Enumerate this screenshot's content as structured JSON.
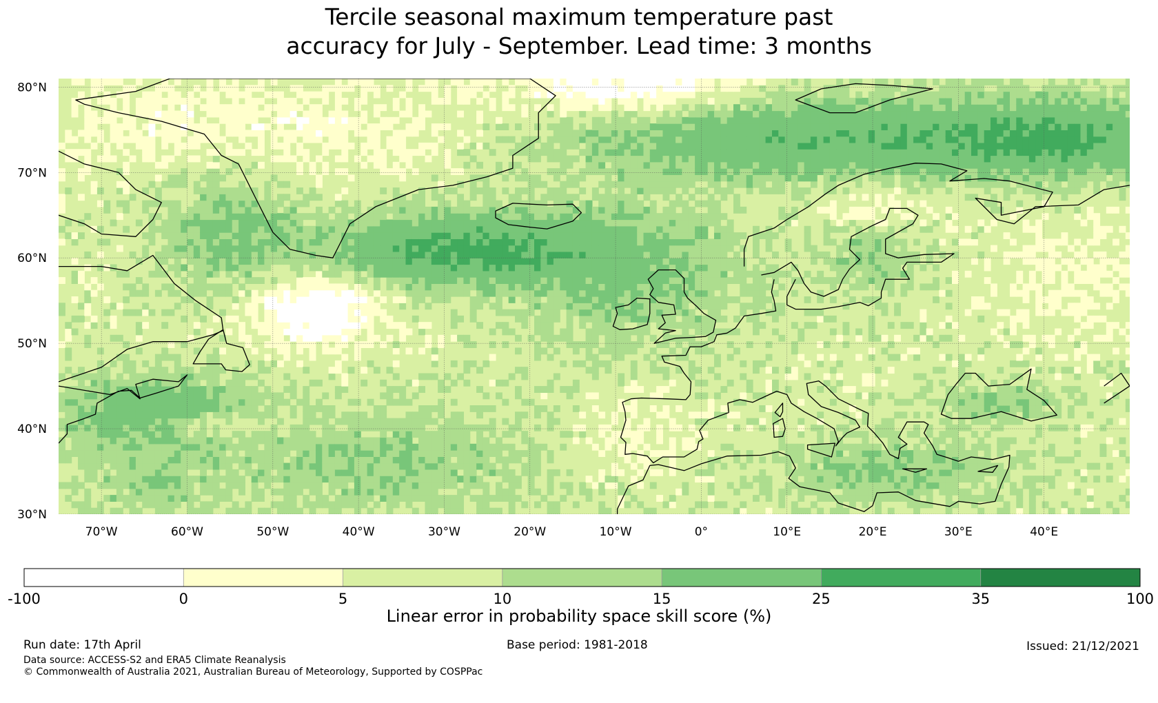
{
  "title": {
    "line1": "Tercile seasonal maximum temperature past",
    "line2": "accuracy for July - September. Lead time: 3 months"
  },
  "map": {
    "lat_labels": [
      "80°N",
      "70°N",
      "60°N",
      "50°N",
      "40°N",
      "30°N"
    ],
    "lon_labels": [
      "70°W",
      "60°W",
      "50°W",
      "40°W",
      "30°W",
      "20°W",
      "10°W",
      "0°",
      "10°E",
      "20°E",
      "30°E",
      "40°E"
    ],
    "lat_range": [
      30,
      81
    ],
    "lon_range": [
      -75,
      50
    ]
  },
  "colorbar": {
    "ticks": [
      "-100",
      "0",
      "5",
      "10",
      "15",
      "25",
      "35",
      "100"
    ],
    "colors": [
      "#ffffff",
      "#ffffcc",
      "#d9f0a3",
      "#addd8e",
      "#78c679",
      "#41ab5d",
      "#238443"
    ],
    "label": "Linear error in probability space skill score (%)"
  },
  "footer": {
    "run_date": "Run date: 17th April",
    "base_period": "Base period: 1981-2018",
    "issued": "Issued: 21/12/2021",
    "data_source": "Data source: ACCESS-S2 and ERA5 Climate Reanalysis",
    "copyright": "© Commonwealth of Australia 2021, Australian Bureau of Meteorology, Supported by COSPPac"
  }
}
